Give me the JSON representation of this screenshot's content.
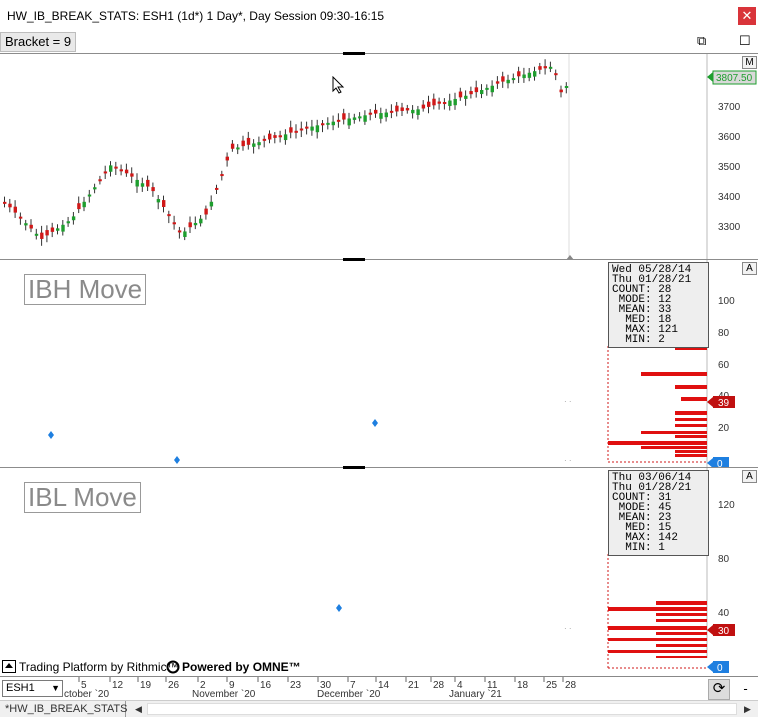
{
  "window": {
    "title": "HW_IB_BREAK_STATS: ESH1 (1d*) 1 Day*, Day Session 09:30-16:15",
    "close_glyph": "✕"
  },
  "toolbar": {
    "bracket_label": "Bracket = 9",
    "restore_glyph": "⧉",
    "maximize_glyph": "☐"
  },
  "price_panel": {
    "button_label": "M",
    "y_ticks": [
      "3700",
      "3600",
      "3500",
      "3400",
      "3300"
    ],
    "last_price": "3807.50",
    "colors": {
      "up": "#1e9e2e",
      "down": "#d01818"
    }
  },
  "ibh_panel": {
    "title": "IBH Move",
    "button_label": "A",
    "stats": [
      "Wed 05/28/14",
      "Thu 01/28/21",
      "COUNT: 28",
      " MODE: 12",
      " MEAN: 33",
      "  MED: 18",
      "  MAX: 121",
      "  MIN: 2"
    ],
    "y_ticks": [
      "100",
      "80",
      "60",
      "40",
      "20"
    ],
    "current_tag": "39",
    "zero_tag": "0"
  },
  "ibl_panel": {
    "title": "IBL Move",
    "button_label": "A",
    "stats": [
      "Thu 03/06/14",
      "Thu 01/28/21",
      "COUNT: 31",
      " MODE: 45",
      " MEAN: 23",
      "  MED: 15",
      "  MAX: 142",
      "  MIN: 1"
    ],
    "y_ticks": [
      "120",
      "80",
      "40"
    ],
    "current_tag": "30",
    "zero_tag": "0"
  },
  "footer": {
    "left_text": "Trading Platform by Rithmic™",
    "right_text": "Powered by OMNE™"
  },
  "date_axis": {
    "symbol": "ESH1",
    "day_labels": [
      "5",
      "12",
      "19",
      "26",
      "2",
      "9",
      "16",
      "23",
      "30",
      "7",
      "14",
      "21",
      "28",
      "4",
      "11",
      "18",
      "25",
      "28"
    ],
    "month_labels": [
      "ctober `20",
      "November `20",
      "December `20",
      "January `21"
    ]
  },
  "bottom": {
    "tab_label": "*HW_IB_BREAK_STATS",
    "left_arrow": "◀",
    "right_arrow": "▶"
  }
}
